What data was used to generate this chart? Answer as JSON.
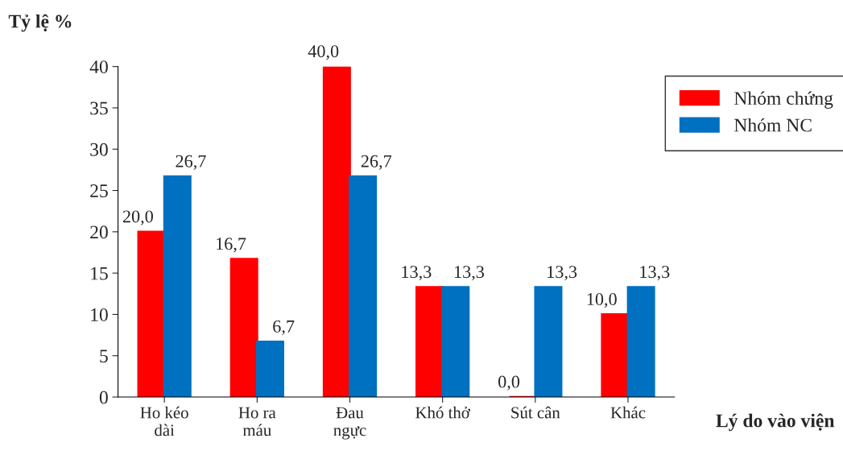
{
  "chart_data": {
    "type": "bar",
    "ylabel": "Tỷ lệ %",
    "xlabel": "Lý do vào viện",
    "categories": [
      "Ho kéo\ndài",
      "Ho ra\nmáu",
      "Đau\nngực",
      "Khó thở",
      "Sút cân",
      "Khác"
    ],
    "series": [
      {
        "name": "Nhóm chứng",
        "color": "#ff0000",
        "values": [
          20.0,
          16.7,
          40.0,
          13.3,
          0.0,
          10.0
        ],
        "value_labels": [
          "20,0",
          "16,7",
          "40,0",
          "13,3",
          "0,0",
          "10,0"
        ]
      },
      {
        "name": "Nhóm NC",
        "color": "#0070c0",
        "values": [
          26.7,
          6.7,
          26.7,
          13.3,
          13.3,
          13.3
        ],
        "value_labels": [
          "26,7",
          "6,7",
          "26,7",
          "13,3",
          "13,3",
          "13,3"
        ]
      }
    ],
    "ylim": [
      0,
      40
    ],
    "yticks": [
      0,
      5,
      10,
      15,
      20,
      25,
      30,
      35,
      40
    ],
    "grid": false,
    "legend": "top right"
  }
}
